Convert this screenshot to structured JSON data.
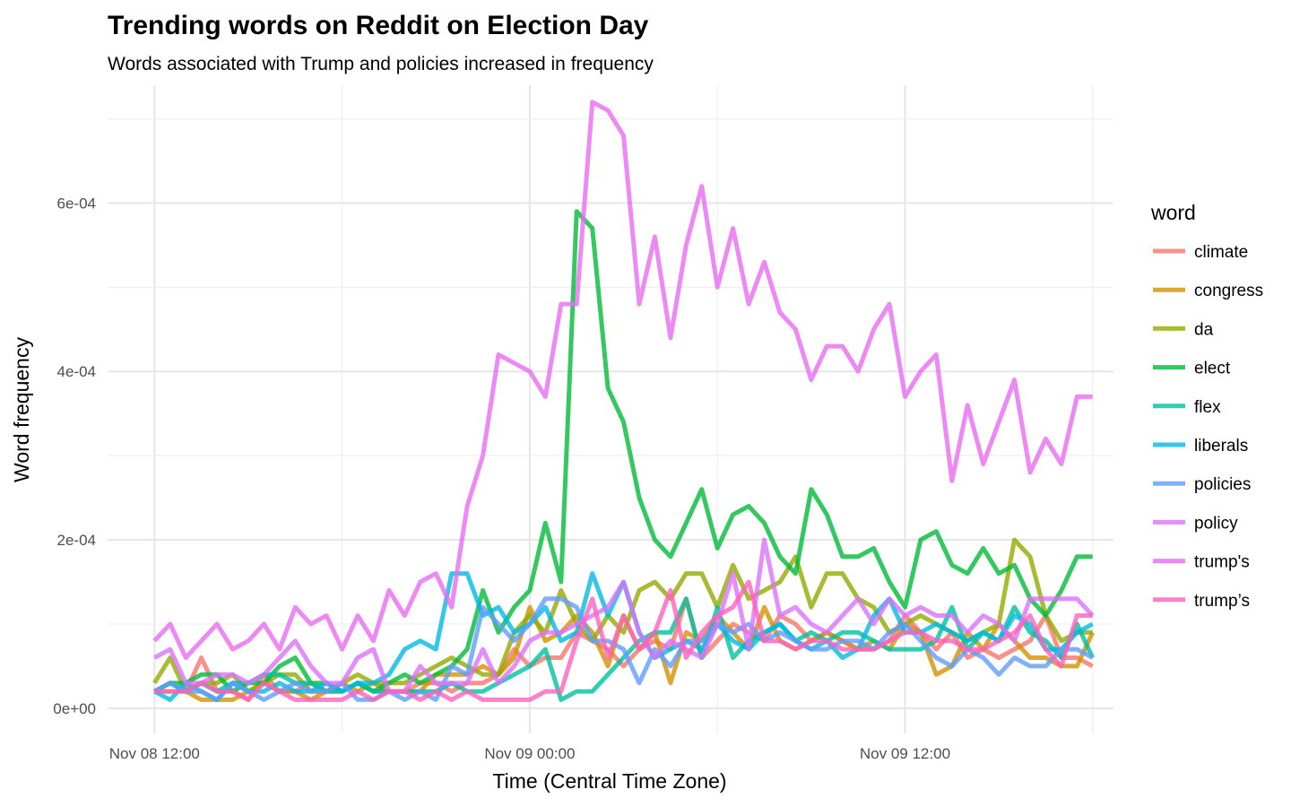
{
  "chart_data": {
    "type": "line",
    "title": "Trending words on Reddit on Election Day",
    "subtitle": "Words associated with Trump and policies increased in frequency",
    "xlabel": "Time (Central Time Zone)",
    "ylabel": "Word frequency",
    "x_ticks": [
      "Nov 08 12:00",
      "Nov 09 00:00",
      "Nov 09 12:00"
    ],
    "y_ticks": [
      "0e+00",
      "2e-04",
      "4e-04",
      "6e-04"
    ],
    "xlim": [
      "2016-11-08 10:30",
      "2016-11-09 18:40"
    ],
    "ylim": [
      -3e-05,
      0.00074
    ],
    "grid": true,
    "legend_title": "word",
    "legend_position": "right",
    "x": [
      "2016-11-08 12:00",
      "2016-11-08 12:30",
      "2016-11-08 13:00",
      "2016-11-08 13:30",
      "2016-11-08 14:00",
      "2016-11-08 14:30",
      "2016-11-08 15:00",
      "2016-11-08 15:30",
      "2016-11-08 16:00",
      "2016-11-08 16:30",
      "2016-11-08 17:00",
      "2016-11-08 17:30",
      "2016-11-08 18:00",
      "2016-11-08 18:30",
      "2016-11-08 19:00",
      "2016-11-08 19:30",
      "2016-11-08 20:00",
      "2016-11-08 20:30",
      "2016-11-08 21:00",
      "2016-11-08 21:30",
      "2016-11-08 22:00",
      "2016-11-08 22:30",
      "2016-11-08 23:00",
      "2016-11-08 23:30",
      "2016-11-09 00:00",
      "2016-11-09 00:30",
      "2016-11-09 01:00",
      "2016-11-09 01:30",
      "2016-11-09 02:00",
      "2016-11-09 02:30",
      "2016-11-09 03:00",
      "2016-11-09 03:30",
      "2016-11-09 04:00",
      "2016-11-09 04:30",
      "2016-11-09 05:00",
      "2016-11-09 05:30",
      "2016-11-09 06:00",
      "2016-11-09 06:30",
      "2016-11-09 07:00",
      "2016-11-09 07:30",
      "2016-11-09 08:00",
      "2016-11-09 08:30",
      "2016-11-09 09:00",
      "2016-11-09 09:30",
      "2016-11-09 10:00",
      "2016-11-09 10:30",
      "2016-11-09 11:00",
      "2016-11-09 11:30",
      "2016-11-09 12:00",
      "2016-11-09 12:30",
      "2016-11-09 13:00",
      "2016-11-09 13:30",
      "2016-11-09 14:00",
      "2016-11-09 14:30",
      "2016-11-09 15:00",
      "2016-11-09 15:30",
      "2016-11-09 16:00",
      "2016-11-09 16:30",
      "2016-11-09 17:00",
      "2016-11-09 17:30",
      "2016-11-09 18:00"
    ],
    "series": [
      {
        "name": "climate",
        "color": "#F8766D",
        "values": [
          2e-05,
          3e-05,
          2e-05,
          6e-05,
          2e-05,
          2e-05,
          1e-05,
          4e-05,
          2e-05,
          2e-05,
          3e-05,
          2e-05,
          2e-05,
          3e-05,
          2e-05,
          2e-05,
          2e-05,
          3e-05,
          3e-05,
          2e-05,
          3e-05,
          3e-05,
          4e-05,
          7e-05,
          5e-05,
          6e-05,
          6e-05,
          9e-05,
          8e-05,
          7e-05,
          5e-05,
          7e-05,
          8e-05,
          7e-05,
          0.00013,
          6e-05,
          8e-05,
          0.0001,
          9e-05,
          8e-05,
          0.00011,
          0.0001,
          8e-05,
          9e-05,
          8e-05,
          7e-05,
          7e-05,
          8e-05,
          0.00011,
          9e-05,
          7e-05,
          9e-05,
          6e-05,
          7e-05,
          6e-05,
          7e-05,
          8e-05,
          0.00011,
          6e-05,
          6e-05,
          5e-05
        ]
      },
      {
        "name": "congress",
        "color": "#D39200",
        "values": [
          2e-05,
          2e-05,
          2e-05,
          1e-05,
          1e-05,
          1e-05,
          2e-05,
          3e-05,
          2e-05,
          2e-05,
          1e-05,
          2e-05,
          3e-05,
          2e-05,
          3e-05,
          2e-05,
          2e-05,
          2e-05,
          4e-05,
          4e-05,
          4e-05,
          5e-05,
          4e-05,
          6e-05,
          0.00012,
          8e-05,
          9e-05,
          0.00011,
          9e-05,
          5e-05,
          0.00011,
          7e-05,
          9e-05,
          3e-05,
          9e-05,
          8e-05,
          0.00011,
          9e-05,
          7e-05,
          0.00012,
          8e-05,
          7e-05,
          8e-05,
          9e-05,
          8e-05,
          7e-05,
          8e-05,
          7e-05,
          0.0001,
          9e-05,
          4e-05,
          5e-05,
          9e-05,
          7e-05,
          0.0001,
          8e-05,
          6e-05,
          6e-05,
          5e-05,
          5e-05,
          9e-05
        ]
      },
      {
        "name": "da",
        "color": "#93AA00",
        "values": [
          3e-05,
          6e-05,
          2e-05,
          3e-05,
          3e-05,
          4e-05,
          2e-05,
          3e-05,
          4e-05,
          4e-05,
          2e-05,
          2e-05,
          3e-05,
          4e-05,
          3e-05,
          3e-05,
          3e-05,
          4e-05,
          5e-05,
          6e-05,
          5e-05,
          4e-05,
          4e-05,
          9e-05,
          0.00011,
          9e-05,
          0.00014,
          0.0001,
          8e-05,
          0.00011,
          9e-05,
          0.00014,
          0.00015,
          0.00013,
          0.00016,
          0.00016,
          0.00012,
          0.00017,
          0.00013,
          0.00014,
          0.00015,
          0.00018,
          0.00012,
          0.00016,
          0.00016,
          0.00013,
          0.00012,
          9e-05,
          0.0001,
          0.00011,
          0.0001,
          9e-05,
          8e-05,
          9e-05,
          0.0001,
          0.0002,
          0.00018,
          0.00011,
          8e-05,
          9e-05,
          9e-05
        ]
      },
      {
        "name": "elect",
        "color": "#00BA38",
        "values": [
          2e-05,
          3e-05,
          3e-05,
          4e-05,
          4e-05,
          2e-05,
          3e-05,
          3e-05,
          5e-05,
          6e-05,
          3e-05,
          3e-05,
          2e-05,
          3e-05,
          2e-05,
          3e-05,
          4e-05,
          3e-05,
          4e-05,
          5e-05,
          7e-05,
          0.00014,
          9e-05,
          0.00012,
          0.00014,
          0.00022,
          0.00015,
          0.00059,
          0.00057,
          0.00038,
          0.00034,
          0.00025,
          0.0002,
          0.00018,
          0.00022,
          0.00026,
          0.00019,
          0.00023,
          0.00024,
          0.00022,
          0.00018,
          0.00016,
          0.00026,
          0.00023,
          0.00018,
          0.00018,
          0.00019,
          0.00015,
          0.00012,
          0.0002,
          0.00021,
          0.00017,
          0.00016,
          0.00019,
          0.00016,
          0.00017,
          0.00013,
          0.00011,
          0.00014,
          0.00018,
          0.00018
        ]
      },
      {
        "name": "flex",
        "color": "#00C19F",
        "values": [
          2e-05,
          3e-05,
          2e-05,
          3e-05,
          2e-05,
          3e-05,
          3e-05,
          4e-05,
          4e-05,
          3e-05,
          3e-05,
          2e-05,
          2e-05,
          3e-05,
          2e-05,
          2e-05,
          2e-05,
          2e-05,
          2e-05,
          3e-05,
          2e-05,
          2e-05,
          3e-05,
          4e-05,
          5e-05,
          7e-05,
          1e-05,
          2e-05,
          2e-05,
          4e-05,
          6e-05,
          8e-05,
          9e-05,
          9e-05,
          0.00013,
          6e-05,
          0.00012,
          6e-05,
          8e-05,
          9e-05,
          0.0001,
          8e-05,
          9e-05,
          8e-05,
          9e-05,
          9e-05,
          8e-05,
          7e-05,
          7e-05,
          7e-05,
          8e-05,
          0.00012,
          7e-05,
          9e-05,
          8e-05,
          0.00012,
          9e-05,
          8e-05,
          6e-05,
          0.0001,
          6e-05
        ]
      },
      {
        "name": "liberals",
        "color": "#00B9E3",
        "values": [
          2e-05,
          1e-05,
          3e-05,
          2e-05,
          1e-05,
          3e-05,
          2e-05,
          2e-05,
          3e-05,
          2e-05,
          2e-05,
          3e-05,
          2e-05,
          3e-05,
          3e-05,
          4e-05,
          7e-05,
          8e-05,
          7e-05,
          0.00016,
          0.00016,
          0.00011,
          0.00012,
          9e-05,
          0.0001,
          0.00012,
          8e-05,
          9e-05,
          0.00016,
          0.00011,
          0.00015,
          9e-05,
          6e-05,
          7e-05,
          8e-05,
          7e-05,
          0.0001,
          8e-05,
          7e-05,
          9e-05,
          0.0001,
          8e-05,
          7e-05,
          8e-05,
          6e-05,
          7e-05,
          0.00011,
          0.00013,
          9e-05,
          9e-05,
          0.0001,
          9e-05,
          8e-05,
          9e-05,
          8e-05,
          0.00011,
          0.0001,
          7e-05,
          7e-05,
          9e-05,
          0.0001
        ]
      },
      {
        "name": "policies",
        "color": "#619CFF",
        "values": [
          2e-05,
          3e-05,
          2e-05,
          2e-05,
          1e-05,
          3e-05,
          2e-05,
          1e-05,
          2e-05,
          3e-05,
          2e-05,
          2e-05,
          3e-05,
          1e-05,
          1e-05,
          2e-05,
          1e-05,
          2e-05,
          1e-05,
          5e-05,
          4e-05,
          0.00012,
          0.0001,
          8e-05,
          0.0001,
          0.00013,
          0.00013,
          0.00012,
          8e-05,
          8e-05,
          7e-05,
          3e-05,
          7e-05,
          5e-05,
          8e-05,
          8e-05,
          0.0001,
          9e-05,
          0.0001,
          8e-05,
          9e-05,
          8e-05,
          7e-05,
          7e-05,
          8e-05,
          8e-05,
          7e-05,
          9e-05,
          0.0001,
          8e-05,
          6e-05,
          5e-05,
          7e-05,
          6e-05,
          4e-05,
          6e-05,
          5e-05,
          5e-05,
          7e-05,
          7e-05,
          6e-05
        ]
      },
      {
        "name": "policy",
        "color": "#DB72FB",
        "values": [
          6e-05,
          7e-05,
          3e-05,
          3e-05,
          4e-05,
          4e-05,
          3e-05,
          4e-05,
          6e-05,
          8e-05,
          5e-05,
          3e-05,
          3e-05,
          6e-05,
          7e-05,
          2e-05,
          2e-05,
          5e-05,
          3e-05,
          3e-05,
          3e-05,
          7e-05,
          3e-05,
          5e-05,
          8e-05,
          9e-05,
          9e-05,
          0.0001,
          0.00011,
          0.00012,
          0.00015,
          9e-05,
          6e-05,
          8e-05,
          7e-05,
          6e-05,
          0.0001,
          0.00016,
          7e-05,
          0.0002,
          0.00011,
          0.00012,
          0.0001,
          9e-05,
          0.00011,
          0.00013,
          0.0001,
          0.00013,
          0.00011,
          0.00012,
          0.00011,
          0.00011,
          9e-05,
          0.00011,
          0.0001,
          8e-05,
          0.00013,
          0.00013,
          0.00013,
          0.00013,
          0.00011
        ]
      },
      {
        "name": "trump's",
        "color": "#E76BF3",
        "values": [
          8e-05,
          0.0001,
          6e-05,
          8e-05,
          0.0001,
          7e-05,
          8e-05,
          0.0001,
          7e-05,
          0.00012,
          0.0001,
          0.00011,
          7e-05,
          0.00011,
          8e-05,
          0.00014,
          0.00011,
          0.00015,
          0.00016,
          0.00012,
          0.00024,
          0.0003,
          0.00042,
          0.00041,
          0.0004,
          0.00037,
          0.00048,
          0.00048,
          0.00072,
          0.00071,
          0.00068,
          0.00048,
          0.00056,
          0.00044,
          0.00055,
          0.00062,
          0.0005,
          0.00057,
          0.00048,
          0.00053,
          0.00047,
          0.00045,
          0.00039,
          0.00043,
          0.00043,
          0.0004,
          0.00045,
          0.00048,
          0.00037,
          0.0004,
          0.00042,
          0.00027,
          0.00036,
          0.00029,
          0.00034,
          0.00039,
          0.00028,
          0.00032,
          0.00029,
          0.00037,
          0.00037
        ]
      },
      {
        "name": "trump’s",
        "color": "#FF62BC",
        "values": [
          2e-05,
          2e-05,
          2e-05,
          3e-05,
          2e-05,
          2e-05,
          1e-05,
          3e-05,
          2e-05,
          1e-05,
          1e-05,
          1e-05,
          1e-05,
          2e-05,
          1e-05,
          2e-05,
          2e-05,
          1e-05,
          2e-05,
          1e-05,
          2e-05,
          1e-05,
          1e-05,
          1e-05,
          1e-05,
          2e-05,
          2e-05,
          8e-05,
          0.00013,
          6e-05,
          0.00011,
          7e-05,
          9e-05,
          0.00014,
          6e-05,
          9e-05,
          0.00011,
          0.00012,
          0.00015,
          8e-05,
          8e-05,
          7e-05,
          8e-05,
          8e-05,
          7e-05,
          7e-05,
          7e-05,
          8e-05,
          9e-05,
          9e-05,
          8e-05,
          8e-05,
          7e-05,
          7e-05,
          8e-05,
          9e-05,
          0.00011,
          7e-05,
          5e-05,
          0.00011,
          0.00011
        ]
      }
    ]
  }
}
